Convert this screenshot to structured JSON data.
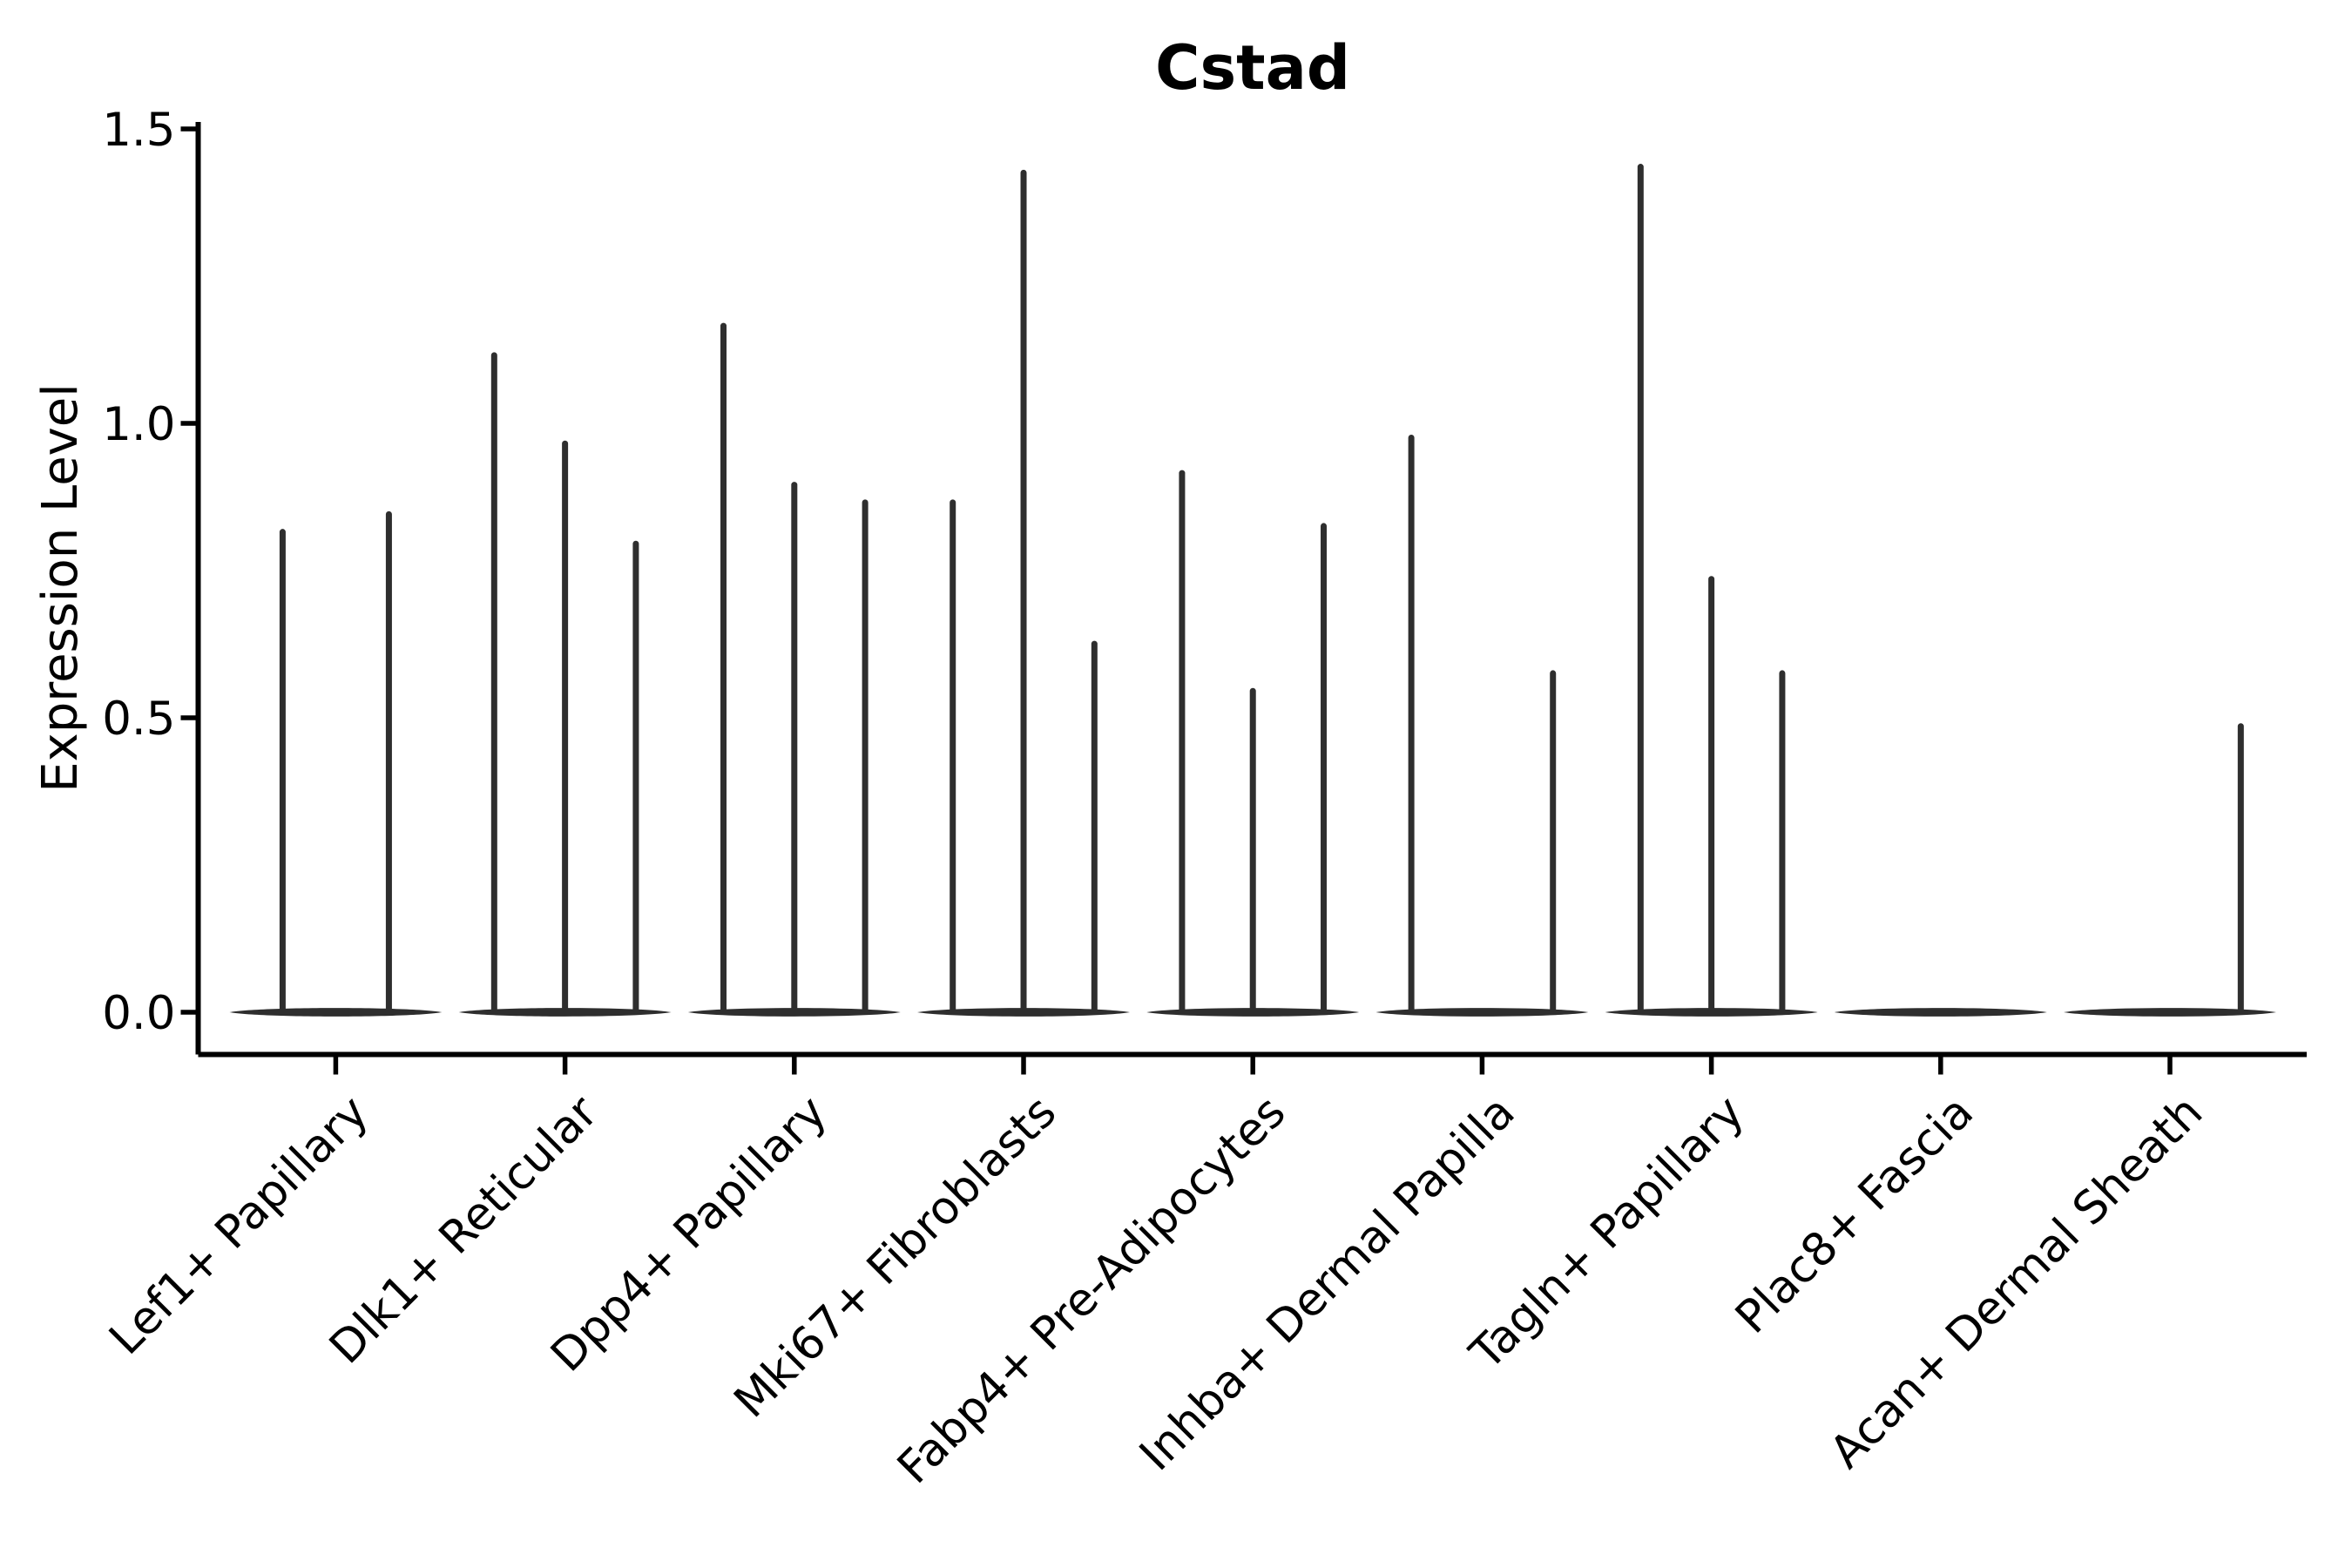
{
  "chart_data": {
    "type": "violin",
    "title": "Cstad",
    "xlabel": "",
    "ylabel": "Expression Level",
    "ylim": [
      -0.07,
      1.51
    ],
    "yticks": [
      {
        "label": "0.0",
        "value": 0.0
      },
      {
        "label": "0.5",
        "value": 0.5
      },
      {
        "label": "1.0",
        "value": 1.0
      },
      {
        "label": "1.5",
        "value": 1.5
      }
    ],
    "grid": false,
    "legend": "none",
    "x_tick_rotation_deg": 45,
    "description": "Violin plot of gene expression; each category contains narrow sub-violins with bulk density at 0 (flat lens at baseline) and a thin spike up to the maximum expression value. null = sub-violin present but flat at 0.",
    "baseline_value": 0.0,
    "categories": [
      {
        "label": "Lef1+ Papillary",
        "violin_maxima": [
          0.82,
          0.85
        ]
      },
      {
        "label": "Dlk1+ Reticular",
        "violin_maxima": [
          1.12,
          0.97,
          0.8
        ]
      },
      {
        "label": "Dpp4+ Papillary",
        "violin_maxima": [
          1.17,
          0.9,
          0.87
        ]
      },
      {
        "label": "Mki67+ Fibroblasts",
        "violin_maxima": [
          0.87,
          1.43,
          0.63
        ]
      },
      {
        "label": "Fabp4+ Pre-Adipocytes",
        "violin_maxima": [
          0.92,
          0.55,
          0.83
        ]
      },
      {
        "label": "Inhba+ Dermal Papilla",
        "violin_maxima": [
          0.98,
          null,
          0.58
        ]
      },
      {
        "label": "Tagln+ Papillary",
        "violin_maxima": [
          1.44,
          0.74,
          0.58
        ]
      },
      {
        "label": "Plac8+ Fascia",
        "violin_maxima": [
          null,
          null,
          null
        ]
      },
      {
        "label": "Acan+ Dermal Sheath",
        "violin_maxima": [
          null,
          null,
          0.49
        ]
      }
    ],
    "colors": {
      "violin": "#2e2e2e",
      "axis": "#000000",
      "text": "#000000",
      "background": "#ffffff"
    }
  }
}
